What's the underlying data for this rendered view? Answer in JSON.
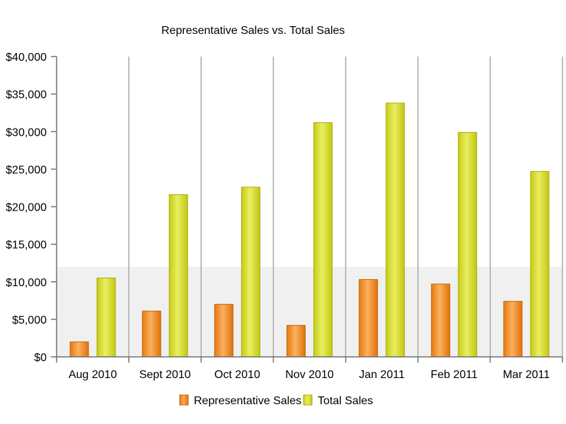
{
  "chart_data": {
    "type": "bar",
    "title": "Representative Sales vs. Total Sales",
    "xlabel": "",
    "ylabel": "",
    "categories": [
      "Aug 2010",
      "Sept 2010",
      "Oct 2010",
      "Nov 2010",
      "Jan 2011",
      "Feb 2011",
      "Mar 2011"
    ],
    "series": [
      {
        "name": "Representative Sales",
        "values": [
          2000,
          6100,
          7000,
          4200,
          10300,
          9700,
          7400
        ],
        "color": "#f08c1e"
      },
      {
        "name": "Total Sales",
        "values": [
          10500,
          21600,
          22600,
          31200,
          33800,
          29900,
          24700
        ],
        "color": "#d6dc2a"
      }
    ],
    "ylim": [
      0,
      40000
    ],
    "yticks": [
      0,
      5000,
      10000,
      15000,
      20000,
      25000,
      30000,
      35000,
      40000
    ],
    "ytick_labels": [
      "$0",
      "$5,000",
      "$10,000",
      "$15,000",
      "$20,000",
      "$25,000",
      "$30,000",
      "$35,000",
      "$40,000"
    ],
    "highlight_band": [
      0,
      12000
    ],
    "grid": false,
    "legend_position": "bottom"
  }
}
